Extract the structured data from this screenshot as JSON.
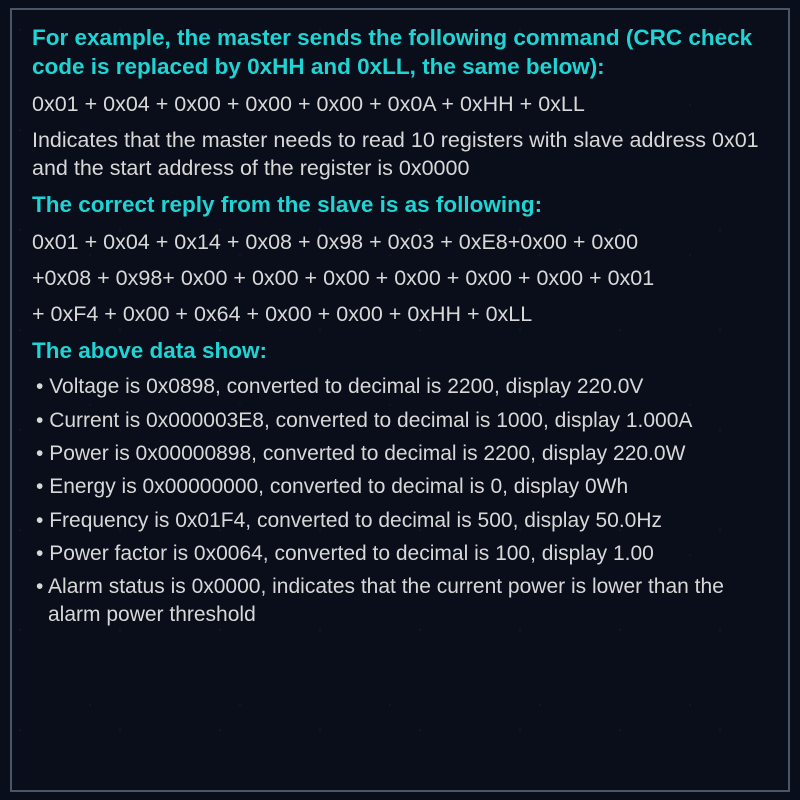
{
  "colors": {
    "heading": "#1fd4d4",
    "body": "#d8d8d8",
    "border": "#4a5568",
    "background": "#0a0e1a"
  },
  "typography": {
    "heading_fontsize": 22.5,
    "body_fontsize": 21.5,
    "bullet_fontsize": 21,
    "heading_weight": "bold",
    "font_family": "Arial"
  },
  "section1": {
    "heading": "For example, the master sends the following command (CRC check code is replaced by 0xHH and 0xLL, the same below):",
    "command": "0x01 + 0x04 + 0x00 + 0x00 + 0x00 + 0x0A + 0xHH + 0xLL",
    "desc": "Indicates that the master needs to read 10 registers with slave address 0x01 and the start address of the register is 0x0000"
  },
  "section2": {
    "heading": "The correct reply from the slave is as following:",
    "line1": "0x01 + 0x04 + 0x14 + 0x08 + 0x98 + 0x03 + 0xE8+0x00 + 0x00",
    "line2": "+0x08 + 0x98+ 0x00 + 0x00 + 0x00 + 0x00 + 0x00 + 0x00 + 0x01",
    "line3": "+ 0xF4 + 0x00 + 0x64 + 0x00 + 0x00 + 0xHH + 0xLL"
  },
  "section3": {
    "heading": "The above data show:",
    "bullets": [
      "Voltage is 0x0898, converted to decimal is 2200, display 220.0V",
      "Current is 0x000003E8, converted to decimal is 1000, display 1.000A",
      "Power is 0x00000898, converted to decimal is 2200, display 220.0W",
      "Energy is 0x00000000, converted to decimal is 0, display 0Wh",
      "Frequency is 0x01F4, converted to decimal is 500, display 50.0Hz",
      "Power factor is 0x0064, converted to decimal is 100, display 1.00",
      "Alarm status is 0x0000, indicates that the current power is lower than the alarm power threshold"
    ]
  }
}
